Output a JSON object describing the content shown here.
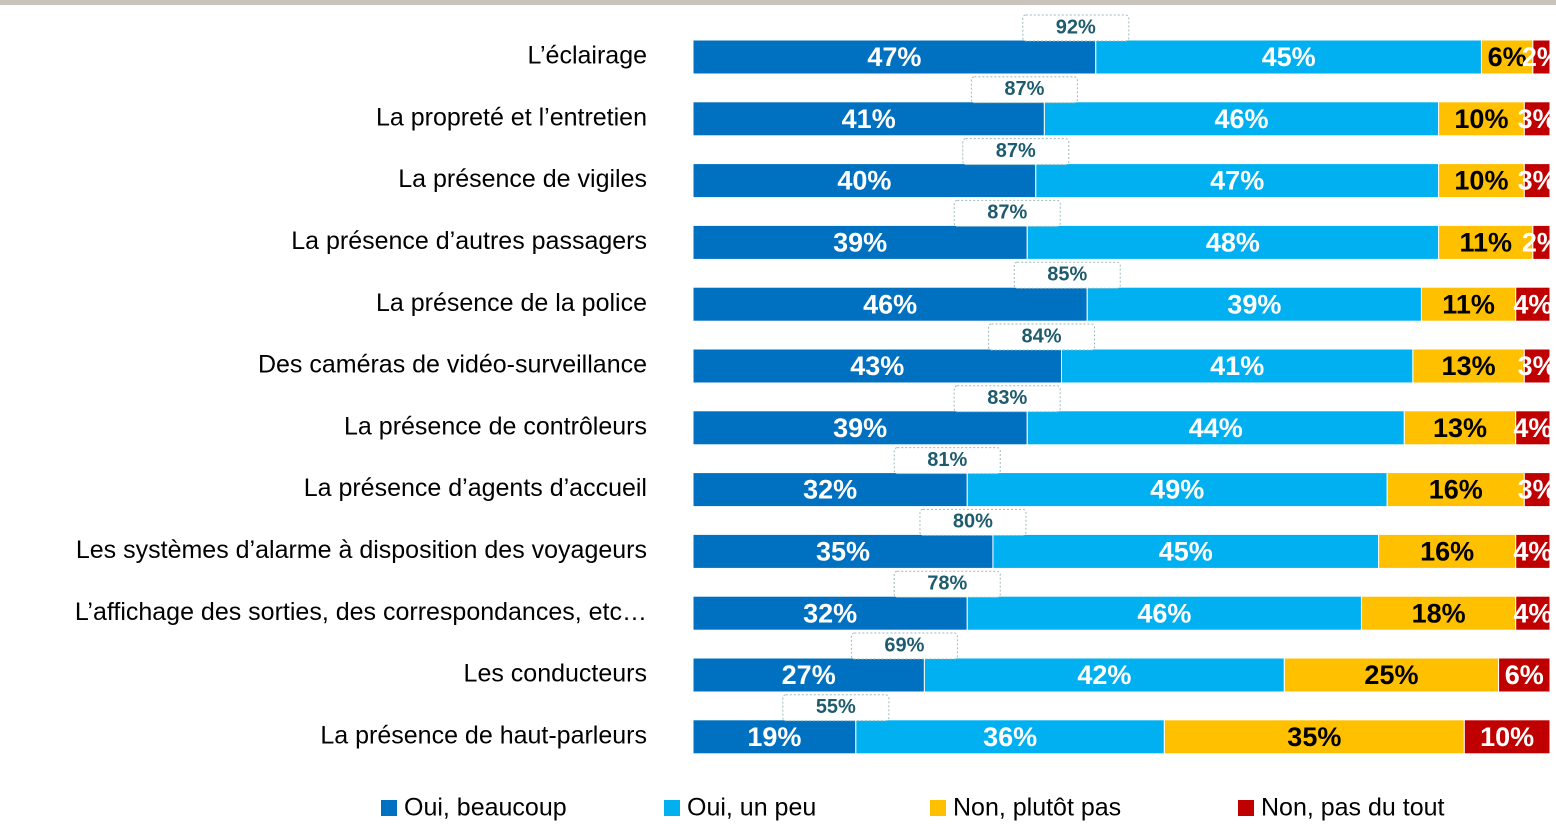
{
  "chart_data": {
    "type": "stacked-bar-horizontal",
    "categories": [
      "L’éclairage",
      "La propreté et l’entretien",
      "La présence de vigiles",
      "La présence d’autres passagers",
      "La présence de la police",
      "Des caméras de vidéo-surveillance",
      "La présence de contrôleurs",
      "La présence d’agents d’accueil",
      "Les systèmes d’alarme à disposition des voyageurs",
      "L’affichage des sorties, des correspondances, etc…",
      "Les conducteurs",
      "La présence de haut-parleurs"
    ],
    "series": [
      {
        "name": "Oui, beaucoup",
        "color": "#0070c0",
        "values": [
          47,
          41,
          40,
          39,
          46,
          43,
          39,
          32,
          35,
          32,
          27,
          19
        ],
        "value_labels": [
          "47%",
          "41%",
          "40%",
          "39%",
          "46%",
          "43%",
          "39%",
          "32%",
          "35%",
          "32%",
          "27%",
          "19%"
        ]
      },
      {
        "name": "Oui, un peu",
        "color": "#00b0f0",
        "values": [
          45,
          46,
          47,
          48,
          39,
          41,
          44,
          49,
          45,
          46,
          42,
          36
        ],
        "value_labels": [
          "45%",
          "46%",
          "47%",
          "48%",
          "39%",
          "41%",
          "44%",
          "49%",
          "45%",
          "46%",
          "42%",
          "36%"
        ]
      },
      {
        "name": "Non, plutôt pas",
        "color": "#ffc000",
        "values": [
          6,
          10,
          10,
          11,
          11,
          13,
          13,
          16,
          16,
          18,
          25,
          35
        ],
        "value_labels": [
          "6%",
          "10%",
          "10%",
          "11%",
          "11%",
          "13%",
          "13%",
          "16%",
          "16%",
          "18%",
          "25%",
          "35%"
        ]
      },
      {
        "name": "Non, pas du tout",
        "color": "#c00000",
        "values": [
          2,
          3,
          3,
          2,
          4,
          3,
          4,
          3,
          4,
          4,
          6,
          10
        ],
        "value_labels": [
          "2%",
          "3%",
          "3%",
          "2%",
          "4%",
          "3%",
          "4%",
          "3%",
          "4%",
          "4%",
          "6%",
          "10%"
        ]
      }
    ],
    "totals": {
      "values": [
        92,
        87,
        87,
        87,
        85,
        84,
        83,
        81,
        80,
        78,
        69,
        55
      ],
      "value_labels": [
        "92%",
        "87%",
        "87%",
        "87%",
        "85%",
        "84%",
        "83%",
        "81%",
        "80%",
        "78%",
        "69%",
        "55%"
      ]
    },
    "xlim": [
      0,
      100
    ]
  }
}
